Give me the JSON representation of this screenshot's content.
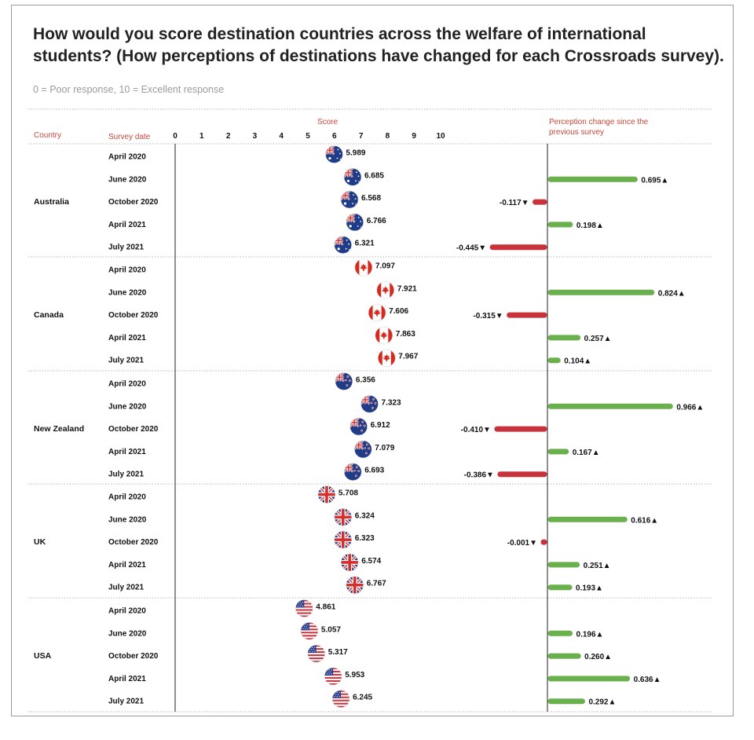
{
  "title": "How would you score destination countries across the welfare of international students? (How perceptions of destinations have changed for each Crossroads survey).",
  "subtitle": "0 = Poor response, 10 = Excellent response",
  "chart_data": {
    "type": "scatter",
    "columns": {
      "country": "Country",
      "survey_date": "Survey date",
      "score": "Score",
      "change": "Perception change since the previous survey"
    },
    "score_ticks": [
      "0",
      "1",
      "2",
      "3",
      "4",
      "5",
      "6",
      "7",
      "8",
      "9",
      "10"
    ],
    "xlim": [
      0,
      10
    ],
    "survey_dates": [
      "April 2020",
      "June 2020",
      "October 2020",
      "April 2021",
      "July 2021"
    ],
    "colors": {
      "positive": "#6ab04c",
      "negative": "#c8323a",
      "label": "#c7483a"
    },
    "countries": [
      {
        "name": "Australia",
        "flag": "australia-flag-icon",
        "scores": [
          5.989,
          6.685,
          6.568,
          6.766,
          6.321
        ],
        "score_labels": [
          "5.989",
          "6.685",
          "6.568",
          "6.766",
          "6.321"
        ],
        "changes": [
          null,
          0.695,
          -0.117,
          0.198,
          -0.445
        ],
        "change_labels": [
          "",
          "0.695▲",
          "-0.117▼",
          "0.198▲",
          "-0.445▼"
        ]
      },
      {
        "name": "Canada",
        "flag": "canada-flag-icon",
        "scores": [
          7.097,
          7.921,
          7.606,
          7.863,
          7.967
        ],
        "score_labels": [
          "7.097",
          "7.921",
          "7.606",
          "7.863",
          "7.967"
        ],
        "changes": [
          null,
          0.824,
          -0.315,
          0.257,
          0.104
        ],
        "change_labels": [
          "",
          "0.824▲",
          "-0.315▼",
          "0.257▲",
          "0.104▲"
        ]
      },
      {
        "name": "New Zealand",
        "flag": "new-zealand-flag-icon",
        "scores": [
          6.356,
          7.323,
          6.912,
          7.079,
          6.693
        ],
        "score_labels": [
          "6.356",
          "7.323",
          "6.912",
          "7.079",
          "6.693"
        ],
        "changes": [
          null,
          0.966,
          -0.41,
          0.167,
          -0.386
        ],
        "change_labels": [
          "",
          "0.966▲",
          "-0.410▼",
          "0.167▲",
          "-0.386▼"
        ]
      },
      {
        "name": "UK",
        "flag": "uk-flag-icon",
        "scores": [
          5.708,
          6.324,
          6.323,
          6.574,
          6.767
        ],
        "score_labels": [
          "5.708",
          "6.324",
          "6.323",
          "6.574",
          "6.767"
        ],
        "changes": [
          null,
          0.616,
          -0.001,
          0.251,
          0.193
        ],
        "change_labels": [
          "",
          "0.616▲",
          "-0.001▼",
          "0.251▲",
          "0.193▲"
        ]
      },
      {
        "name": "USA",
        "flag": "usa-flag-icon",
        "scores": [
          4.861,
          5.057,
          5.317,
          5.953,
          6.245
        ],
        "score_labels": [
          "4.861",
          "5.057",
          "5.317",
          "5.953",
          "6.245"
        ],
        "changes": [
          null,
          0.196,
          0.26,
          0.636,
          0.292
        ],
        "change_labels": [
          "",
          "0.196▲",
          "0.260▲",
          "0.636▲",
          "0.292▲"
        ]
      }
    ]
  }
}
